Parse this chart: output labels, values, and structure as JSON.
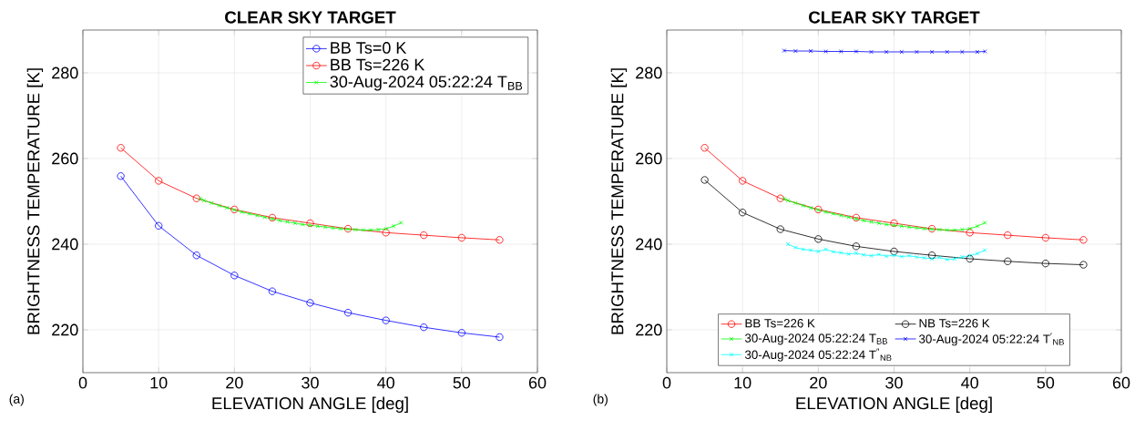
{
  "chart_data": [
    {
      "type": "line",
      "title": "CLEAR SKY TARGET",
      "xlabel": "ELEVATION ANGLE [deg]",
      "ylabel": "BRIGHTNESS TEMPERATURE [K]",
      "xlim": [
        0,
        60
      ],
      "ylim": [
        210,
        290
      ],
      "xticks": [
        0,
        10,
        20,
        30,
        40,
        50,
        60
      ],
      "yticks": [
        220,
        240,
        260,
        280
      ],
      "grid": true,
      "legend": "top right",
      "annotations": [
        "(a)"
      ],
      "series": [
        {
          "name": "BB Ts=0 K",
          "color": "#0000ff",
          "marker": "circle",
          "x": [
            5,
            10,
            15,
            20,
            25,
            30,
            35,
            40,
            45,
            50,
            55
          ],
          "values": [
            255.9,
            244.3,
            237.4,
            232.7,
            229.0,
            226.3,
            224.0,
            222.2,
            220.6,
            219.3,
            218.3
          ]
        },
        {
          "name": "BB Ts=226 K",
          "color": "#ff0000",
          "marker": "circle",
          "x": [
            5,
            10,
            15,
            20,
            25,
            30,
            35,
            40,
            45,
            50,
            55
          ],
          "values": [
            262.5,
            254.8,
            250.7,
            248.1,
            246.2,
            244.9,
            243.6,
            242.7,
            242.1,
            241.5,
            241.0
          ]
        },
        {
          "name": "30-Aug-2024 05:22:24 T$_{BB}$",
          "color": "#00ff00",
          "marker": "cross",
          "x": [
            15.5,
            16,
            17,
            18,
            19,
            20,
            21,
            22,
            23,
            24,
            25,
            26,
            27,
            28,
            29,
            30,
            31,
            32,
            33,
            34,
            35,
            36,
            37,
            38,
            39,
            40,
            41,
            42
          ],
          "values": [
            250.6,
            250.2,
            249.6,
            249.0,
            248.5,
            248.0,
            247.5,
            247.1,
            246.7,
            246.3,
            245.9,
            245.5,
            245.2,
            244.9,
            244.6,
            244.4,
            244.2,
            244.0,
            243.8,
            243.6,
            243.5,
            243.4,
            243.3,
            243.3,
            243.4,
            243.6,
            244.2,
            245.0
          ]
        }
      ]
    },
    {
      "type": "line",
      "title": "CLEAR SKY TARGET",
      "xlabel": "ELEVATION ANGLE [deg]",
      "ylabel": "BRIGHTNESS TEMPERATURE [K]",
      "xlim": [
        0,
        60
      ],
      "ylim": [
        210,
        290
      ],
      "xticks": [
        0,
        10,
        20,
        30,
        40,
        50,
        60
      ],
      "yticks": [
        220,
        240,
        260,
        280
      ],
      "grid": true,
      "legend": "bottom",
      "annotations": [
        "(b)"
      ],
      "series": [
        {
          "name": "BB Ts=226 K",
          "color": "#ff0000",
          "marker": "circle",
          "x": [
            5,
            10,
            15,
            20,
            25,
            30,
            35,
            40,
            45,
            50,
            55
          ],
          "values": [
            262.5,
            254.8,
            250.7,
            248.1,
            246.2,
            244.9,
            243.6,
            242.7,
            242.1,
            241.5,
            241.0
          ]
        },
        {
          "name": "NB Ts=226 K",
          "color": "#000000",
          "marker": "circle",
          "x": [
            5,
            10,
            15,
            20,
            25,
            30,
            35,
            40,
            45,
            50,
            55
          ],
          "values": [
            255.0,
            247.4,
            243.5,
            241.2,
            239.5,
            238.3,
            237.4,
            236.6,
            236.0,
            235.5,
            235.2
          ]
        },
        {
          "name": "30-Aug-2024 05:22:24 T$_{BB}$",
          "color": "#00ff00",
          "marker": "cross",
          "x": [
            15.5,
            16,
            17,
            18,
            19,
            20,
            21,
            22,
            23,
            24,
            25,
            26,
            27,
            28,
            29,
            30,
            31,
            32,
            33,
            34,
            35,
            36,
            37,
            38,
            39,
            40,
            41,
            42
          ],
          "values": [
            250.6,
            250.2,
            249.6,
            249.0,
            248.5,
            248.0,
            247.5,
            247.1,
            246.7,
            246.3,
            245.9,
            245.5,
            245.2,
            244.9,
            244.6,
            244.4,
            244.2,
            244.0,
            243.8,
            243.6,
            243.5,
            243.4,
            243.3,
            243.3,
            243.4,
            243.6,
            244.2,
            245.0
          ]
        },
        {
          "name": "30-Aug-2024 05:22:24 T$^{′}$$_{NB}$",
          "color": "#0000ff",
          "marker": "cross",
          "x": [
            15.5,
            17,
            19,
            21,
            23,
            25,
            27,
            29,
            31,
            33,
            35,
            37,
            39,
            41,
            42
          ],
          "values": [
            285.2,
            285.1,
            285.1,
            285.0,
            285.0,
            285.0,
            284.9,
            284.9,
            284.9,
            284.9,
            284.9,
            284.9,
            284.9,
            284.9,
            285.0
          ]
        },
        {
          "name": "30-Aug-2024 05:22:24 T$^{″}$$_{NB}$",
          "color": "#00ffff",
          "marker": "cross",
          "x": [
            16,
            17,
            18,
            19,
            20,
            21,
            22,
            23,
            24,
            25,
            26,
            27,
            28,
            29,
            30,
            31,
            32,
            33,
            34,
            35,
            36,
            37,
            38,
            39,
            40,
            41,
            42
          ],
          "values": [
            240.0,
            239.2,
            238.8,
            238.6,
            238.3,
            238.8,
            238.2,
            238.0,
            237.7,
            237.9,
            237.5,
            237.3,
            237.6,
            237.2,
            237.4,
            237.1,
            237.3,
            237.0,
            236.8,
            236.6,
            236.9,
            236.4,
            236.6,
            237.0,
            237.3,
            237.8,
            238.6
          ]
        }
      ]
    }
  ]
}
